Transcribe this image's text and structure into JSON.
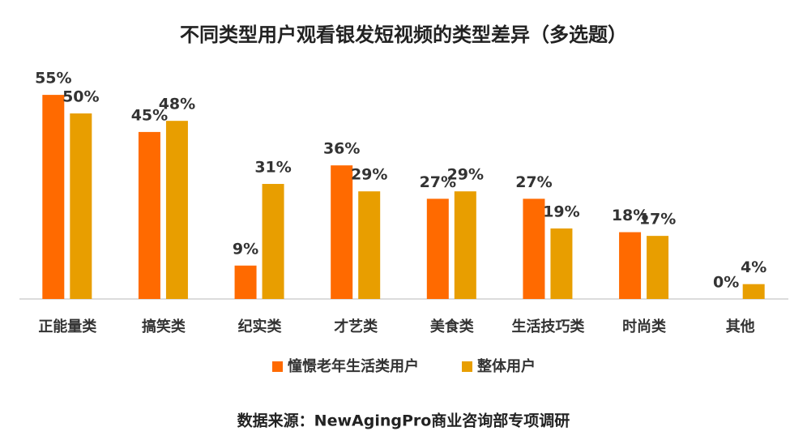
{
  "chart_data": {
    "type": "bar",
    "title": "不同类型用户观看银发短视频的类型差异（多选题）",
    "categories": [
      "正能量类",
      "搞笑类",
      "纪实类",
      "才艺类",
      "美食类",
      "生活技巧类",
      "时尚类",
      "其他"
    ],
    "series": [
      {
        "name": "憧憬老年生活类用户",
        "color": "#ff6a00",
        "values": [
          55,
          45,
          9,
          36,
          27,
          27,
          18,
          0
        ],
        "value_labels": [
          "55%",
          "45%",
          "9%",
          "36%",
          "27%",
          "27%",
          "18%",
          "0%"
        ]
      },
      {
        "name": "整体用户",
        "color": "#e89e00",
        "values": [
          50,
          48,
          31,
          29,
          29,
          19,
          17,
          4
        ],
        "value_labels": [
          "50%",
          "48%",
          "31%",
          "29%",
          "29%",
          "19%",
          "17%",
          "4%"
        ]
      }
    ],
    "legend": "bottom",
    "source": "数据来源：NewAgingPro商业咨询部专项调研"
  }
}
